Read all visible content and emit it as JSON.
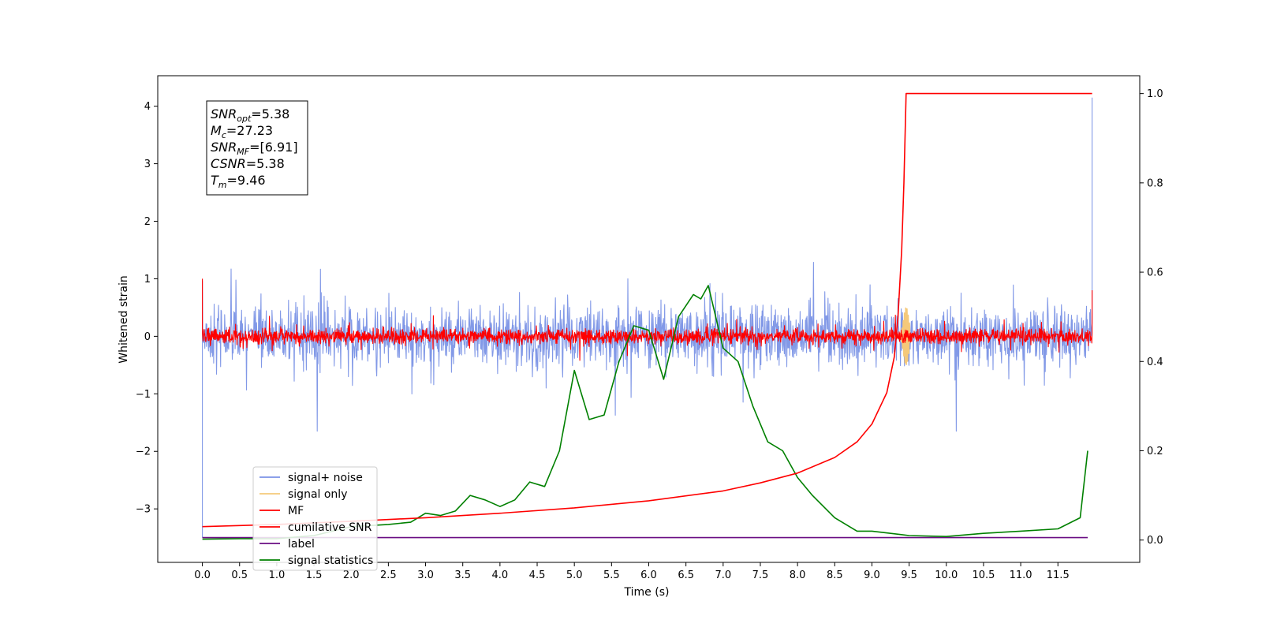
{
  "chart_data": {
    "type": "line",
    "xlabel": "Time (s)",
    "ylabel": "Whitened strain",
    "xlim": [
      -0.6,
      12.6
    ],
    "ylim": [
      -3.93,
      4.53
    ],
    "y2lim": [
      -0.05,
      1.04
    ],
    "xticks": [
      "0.0",
      "0.5",
      "1.0",
      "1.5",
      "2.0",
      "2.5",
      "3.0",
      "3.5",
      "4.0",
      "4.5",
      "5.0",
      "5.5",
      "6.0",
      "6.5",
      "7.0",
      "7.5",
      "8.0",
      "8.5",
      "9.0",
      "9.5",
      "10.0",
      "10.5",
      "11.0",
      "11.5"
    ],
    "xtick_values": [
      0.0,
      0.5,
      1.0,
      1.5,
      2.0,
      2.5,
      3.0,
      3.5,
      4.0,
      4.5,
      5.0,
      5.5,
      6.0,
      6.5,
      7.0,
      7.5,
      8.0,
      8.5,
      9.0,
      9.5,
      10.0,
      10.5,
      11.0,
      11.5
    ],
    "yticks": [
      "−3",
      "−2",
      "−1",
      "0",
      "1",
      "2",
      "3",
      "4"
    ],
    "ytick_values": [
      -3,
      -2,
      -1,
      0,
      1,
      2,
      3,
      4
    ],
    "y2ticks": [
      "0.0",
      "0.2",
      "0.4",
      "0.6",
      "0.8",
      "1.0"
    ],
    "y2tick_values": [
      0.0,
      0.2,
      0.4,
      0.6,
      0.8,
      1.0
    ],
    "annotation": {
      "lines": [
        {
          "sym": "SNR",
          "sub": "opt",
          "value": "=5.38"
        },
        {
          "sym": "M",
          "sub": "c",
          "value": "=27.23"
        },
        {
          "sym": "SNR",
          "sub": "MF",
          "value": "=[6.91]"
        },
        {
          "sym": "CSNR",
          "sub": "",
          "value": "=5.38"
        },
        {
          "sym": "T",
          "sub": "m",
          "value": "=9.46"
        }
      ]
    },
    "series": [
      {
        "name": "signal+ noise",
        "color": "#7b93e6",
        "axis": "left",
        "kind": "noise",
        "amplitude": 0.55,
        "t_range": [
          0.0,
          11.96
        ],
        "start_value": -3.5,
        "end_value": 4.15
      },
      {
        "name": "signal only",
        "color": "#f5c97a",
        "axis": "left",
        "kind": "chirp",
        "peak_time": 9.46,
        "peak_amplitude": 0.5
      },
      {
        "name": "MF",
        "color": "#ff0000",
        "axis": "left",
        "kind": "noise",
        "amplitude": 0.14,
        "t_range": [
          0.0,
          11.96
        ],
        "start_value": 1.0,
        "end_value": 0.8
      },
      {
        "name": "cumilative SNR",
        "color": "#ff0000",
        "axis": "right",
        "x": [
          0.0,
          1.0,
          2.0,
          3.0,
          4.0,
          5.0,
          6.0,
          7.0,
          7.5,
          8.0,
          8.5,
          8.8,
          9.0,
          9.2,
          9.3,
          9.35,
          9.4,
          9.43,
          9.46,
          11.96
        ],
        "y": [
          0.03,
          0.035,
          0.042,
          0.05,
          0.06,
          0.072,
          0.088,
          0.11,
          0.128,
          0.15,
          0.185,
          0.22,
          0.26,
          0.33,
          0.41,
          0.5,
          0.65,
          0.8,
          1.0,
          1.0
        ]
      },
      {
        "name": "label",
        "color": "#6a0d83",
        "axis": "left",
        "x": [
          0.0,
          11.9
        ],
        "y": [
          -3.5,
          -3.5
        ]
      },
      {
        "name": "signal statistics",
        "color": "#008000",
        "axis": "right",
        "x": [
          0.0,
          0.5,
          1.0,
          1.5,
          2.0,
          2.5,
          2.8,
          3.0,
          3.2,
          3.4,
          3.6,
          3.8,
          4.0,
          4.2,
          4.4,
          4.6,
          4.8,
          5.0,
          5.2,
          5.4,
          5.6,
          5.8,
          6.0,
          6.2,
          6.4,
          6.6,
          6.7,
          6.8,
          7.0,
          7.2,
          7.4,
          7.6,
          7.8,
          8.0,
          8.2,
          8.5,
          8.8,
          9.0,
          9.5,
          10.0,
          10.5,
          11.0,
          11.5,
          11.8,
          11.9
        ],
        "y": [
          0.002,
          0.003,
          0.003,
          0.01,
          0.03,
          0.035,
          0.04,
          0.06,
          0.055,
          0.065,
          0.1,
          0.09,
          0.075,
          0.09,
          0.13,
          0.12,
          0.2,
          0.38,
          0.27,
          0.28,
          0.4,
          0.48,
          0.47,
          0.36,
          0.5,
          0.55,
          0.54,
          0.57,
          0.43,
          0.4,
          0.3,
          0.22,
          0.2,
          0.14,
          0.1,
          0.05,
          0.02,
          0.02,
          0.01,
          0.008,
          0.015,
          0.02,
          0.025,
          0.05,
          0.2
        ]
      }
    ],
    "legend_position": "lower-left"
  }
}
